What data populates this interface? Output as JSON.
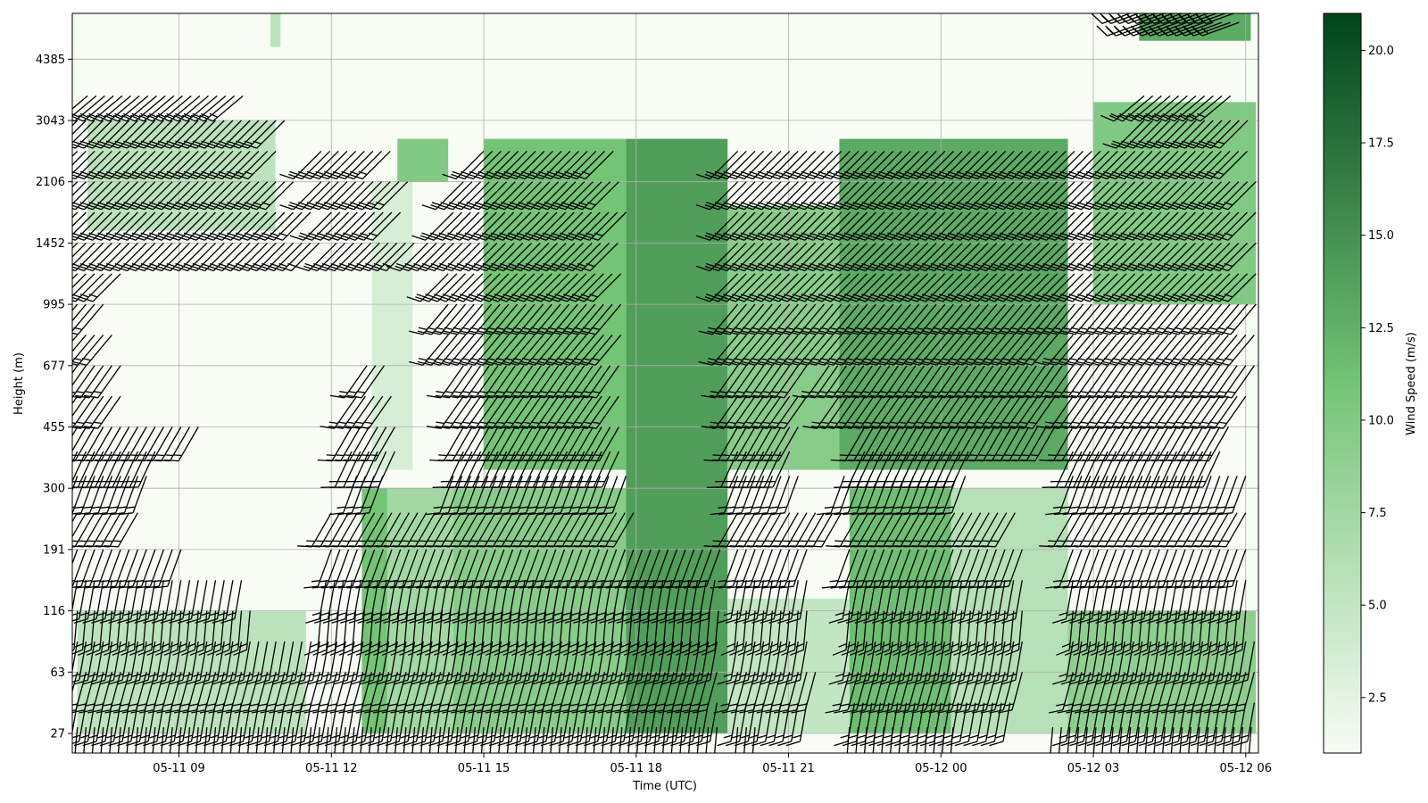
{
  "chart_data": {
    "type": "heatmap",
    "title": "",
    "xlabel": "Time (UTC)",
    "ylabel": "Height (m)",
    "colorbar_label": "Wind Speed (m/s)",
    "colormap": "Greens",
    "colors": {
      "low": "#f7fcf5",
      "mid": "#74c476",
      "high": "#00441b"
    },
    "grid": true,
    "x_start_hour": 6.9,
    "x_end_hour": 30.25,
    "x_ticks": [
      {
        "hour": 9,
        "label": "05-11 09"
      },
      {
        "hour": 12,
        "label": "05-11 12"
      },
      {
        "hour": 15,
        "label": "05-11 15"
      },
      {
        "hour": 18,
        "label": "05-11 18"
      },
      {
        "hour": 21,
        "label": "05-11 21"
      },
      {
        "hour": 24,
        "label": "05-12 00"
      },
      {
        "hour": 27,
        "label": "05-12 03"
      },
      {
        "hour": 30,
        "label": "05-12 06"
      }
    ],
    "y_ticks": [
      "27",
      "63",
      "116",
      "191",
      "300",
      "455",
      "677",
      "995",
      "1452",
      "2106",
      "3043",
      "4385"
    ],
    "clim": [
      1.0,
      21.0
    ],
    "colorbar_ticks": [
      "2.5",
      "5.0",
      "7.5",
      "10.0",
      "12.5",
      "15.0",
      "17.5",
      "20.0"
    ],
    "regions": [
      {
        "t": [
          7.0,
          11.5
        ],
        "levels": [
          0,
          2
        ],
        "speed": 5.5
      },
      {
        "t": [
          12.6,
          13.1
        ],
        "levels": [
          0,
          4
        ],
        "speed": 11.0
      },
      {
        "t": [
          13.1,
          14.4
        ],
        "levels": [
          0,
          4
        ],
        "speed": 7.5
      },
      {
        "t": [
          14.4,
          17.8
        ],
        "levels": [
          0,
          4
        ],
        "speed": 9.5
      },
      {
        "t": [
          17.8,
          19.8
        ],
        "levels": [
          0,
          9.7
        ],
        "speed": 14.0
      },
      {
        "t": [
          19.8,
          22.2
        ],
        "levels": [
          0,
          2.2
        ],
        "speed": 5.0
      },
      {
        "t": [
          22.2,
          24.2
        ],
        "levels": [
          0,
          4
        ],
        "speed": 11.5
      },
      {
        "t": [
          24.2,
          26.5
        ],
        "levels": [
          0,
          4
        ],
        "speed": 6.0
      },
      {
        "t": [
          26.5,
          30.2
        ],
        "levels": [
          0,
          2
        ],
        "speed": 9.0
      },
      {
        "t": [
          12.8,
          13.6
        ],
        "levels": [
          4.3,
          9.0
        ],
        "speed": 3.5
      },
      {
        "t": [
          15.0,
          17.8
        ],
        "levels": [
          4.3,
          9.7
        ],
        "speed": 11.0
      },
      {
        "t": [
          19.8,
          22.0
        ],
        "levels": [
          4.3,
          8.6
        ],
        "speed": 9.5
      },
      {
        "t": [
          22.0,
          26.5
        ],
        "levels": [
          4.3,
          9.7
        ],
        "speed": 13.0
      },
      {
        "t": [
          27.0,
          30.2
        ],
        "levels": [
          7.0,
          10.3
        ],
        "speed": 10.0
      },
      {
        "t": [
          7.2,
          10.9
        ],
        "levels": [
          8.2,
          10.0
        ],
        "speed": 5.5
      },
      {
        "t": [
          13.3,
          14.3
        ],
        "levels": [
          9.0,
          9.7
        ],
        "speed": 10.0
      },
      {
        "t": [
          10.8,
          11.0
        ],
        "levels": [
          11.2,
          12.0
        ],
        "speed": 5.5
      },
      {
        "t": [
          27.9,
          30.1
        ],
        "levels": [
          11.3,
          11.9
        ],
        "speed": 13.0
      }
    ],
    "barb_rows": [
      {
        "level": 0.1,
        "spans": [
          [
            7.0,
            11.5
          ],
          [
            11.6,
            19.7
          ],
          [
            20.0,
            20.4
          ],
          [
            22.2,
            24.4
          ],
          [
            26.2,
            30.2
          ]
        ],
        "dir": 185,
        "speed": 10
      },
      {
        "level": 0.5,
        "spans": [
          [
            7.0,
            11.5
          ],
          [
            11.6,
            19.7
          ],
          [
            20.0,
            21.5
          ],
          [
            22.3,
            25.4
          ],
          [
            26.6,
            30.2
          ]
        ],
        "dir": 190,
        "speed": 10
      },
      {
        "level": 1.0,
        "spans": [
          [
            7.0,
            11.5
          ],
          [
            11.6,
            19.7
          ],
          [
            20.0,
            21.6
          ],
          [
            22.2,
            25.6
          ],
          [
            26.6,
            30.2
          ]
        ],
        "dir": 195,
        "speed": 10
      },
      {
        "level": 1.5,
        "spans": [
          [
            7.0,
            11.5
          ],
          [
            11.6,
            19.7
          ],
          [
            20.0,
            21.5
          ],
          [
            22.2,
            25.6
          ],
          [
            26.6,
            30.2
          ]
        ],
        "dir": 190,
        "speed": 10
      },
      {
        "level": 2.0,
        "spans": [
          [
            7.0,
            10.5
          ],
          [
            11.8,
            19.7
          ],
          [
            20.0,
            21.5
          ],
          [
            22.2,
            25.6
          ],
          [
            26.6,
            30.1
          ]
        ],
        "dir": 185,
        "speed": 10
      },
      {
        "level": 2.5,
        "spans": [
          [
            7.0,
            10.3
          ],
          [
            11.9,
            19.7
          ],
          [
            20.0,
            21.5
          ],
          [
            22.2,
            25.6
          ],
          [
            26.6,
            30.1
          ]
        ],
        "dir": 190,
        "speed": 10
      },
      {
        "level": 3.0,
        "spans": [
          [
            7.0,
            9.1
          ],
          [
            12.0,
            19.7
          ],
          [
            20.0,
            21.5
          ],
          [
            22.2,
            25.6
          ],
          [
            26.6,
            30.1
          ]
        ],
        "dir": 200,
        "speed": 10
      },
      {
        "level": 3.6,
        "spans": [
          [
            7.0,
            8.2
          ],
          [
            12.0,
            18.0
          ],
          [
            20.0,
            22.2
          ],
          [
            22.4,
            25.6
          ],
          [
            26.6,
            30.1
          ]
        ],
        "dir": 210,
        "speed": 10
      },
      {
        "level": 4.2,
        "spans": [
          [
            7.0,
            8.5
          ],
          [
            12.5,
            13.1
          ],
          [
            14.4,
            17.8
          ],
          [
            20.0,
            21.2
          ],
          [
            22.1,
            24.5
          ],
          [
            26.6,
            30.0
          ]
        ],
        "dir": 200,
        "speed": 10
      },
      {
        "level": 4.6,
        "spans": [
          [
            7.0,
            8.6
          ],
          [
            12.4,
            13.3
          ],
          [
            14.6,
            17.8
          ],
          [
            20.0,
            21.1
          ],
          [
            22.5,
            24.7
          ],
          [
            26.6,
            29.6
          ]
        ],
        "dir": 205,
        "speed": 10
      },
      {
        "level": 5.0,
        "spans": [
          [
            7.0,
            9.4
          ],
          [
            12.4,
            13.4
          ],
          [
            14.6,
            17.8
          ],
          [
            20.0,
            21.2
          ],
          [
            22.5,
            26.4
          ],
          [
            26.6,
            29.8
          ]
        ],
        "dir": 210,
        "speed": 10
      },
      {
        "level": 5.5,
        "spans": [
          [
            7.0,
            8.0
          ],
          [
            12.5,
            13.2
          ],
          [
            14.6,
            17.8
          ],
          [
            20.0,
            21.4
          ],
          [
            22.0,
            26.4
          ],
          [
            26.6,
            30.1
          ]
        ],
        "dir": 215,
        "speed": 10
      },
      {
        "level": 6.0,
        "spans": [
          [
            7.0,
            8.0
          ],
          [
            12.7,
            13.1
          ],
          [
            14.6,
            17.8
          ],
          [
            20.0,
            21.4
          ],
          [
            21.8,
            26.4
          ],
          [
            26.6,
            30.2
          ]
        ],
        "dir": 215,
        "speed": 10
      },
      {
        "level": 6.5,
        "spans": [
          [
            7.0,
            7.8
          ],
          [
            14.3,
            17.8
          ],
          [
            20.0,
            21.6
          ],
          [
            21.7,
            26.4
          ],
          [
            26.6,
            30.2
          ]
        ],
        "dir": 220,
        "speed": 10
      },
      {
        "level": 7.0,
        "spans": [
          [
            7.0,
            7.6
          ],
          [
            14.3,
            17.8
          ],
          [
            20.0,
            30.2
          ]
        ],
        "dir": 220,
        "speed": 10
      },
      {
        "level": 7.5,
        "spans": [
          [
            7.0,
            8.0
          ],
          [
            14.3,
            17.8
          ],
          [
            20.0,
            30.2
          ]
        ],
        "dir": 225,
        "speed": 10
      },
      {
        "level": 8.0,
        "spans": [
          [
            7.0,
            11.8
          ],
          [
            12.1,
            13.7
          ],
          [
            13.9,
            17.8
          ],
          [
            20.0,
            30.2
          ]
        ],
        "dir": 225,
        "speed": 10
      },
      {
        "level": 8.5,
        "spans": [
          [
            7.0,
            11.6
          ],
          [
            12.0,
            13.5
          ],
          [
            14.4,
            17.8
          ],
          [
            20.0,
            30.2
          ]
        ],
        "dir": 225,
        "speed": 10
      },
      {
        "level": 9.0,
        "spans": [
          [
            7.0,
            11.4
          ],
          [
            11.8,
            13.6
          ],
          [
            14.6,
            17.8
          ],
          [
            20.0,
            30.2
          ]
        ],
        "dir": 225,
        "speed": 10
      },
      {
        "level": 9.5,
        "spans": [
          [
            7.0,
            11.0
          ],
          [
            11.8,
            13.2
          ],
          [
            15.0,
            17.6
          ],
          [
            20.0,
            30.1
          ]
        ],
        "dir": 225,
        "speed": 10
      },
      {
        "level": 10.0,
        "spans": [
          [
            7.0,
            11.2
          ],
          [
            28.0,
            30.1
          ]
        ],
        "dir": 225,
        "speed": 10
      },
      {
        "level": 10.4,
        "spans": [
          [
            7.2,
            10.3
          ],
          [
            28.0,
            29.8
          ]
        ],
        "dir": 230,
        "speed": 10
      },
      {
        "level": 11.6,
        "spans": [
          [
            28.0,
            30.0
          ]
        ],
        "dir": 250,
        "speed": 10
      },
      {
        "level": 11.8,
        "spans": [
          [
            27.9,
            30.1
          ]
        ],
        "dir": 250,
        "speed": 10
      }
    ]
  }
}
